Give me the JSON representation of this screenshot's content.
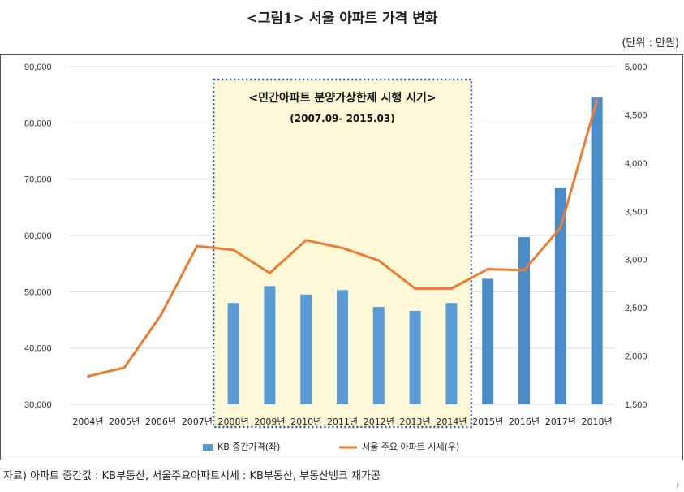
{
  "title": "<그림1> 서울 아파트 가격 변화",
  "unit_label": "(단위 : 만원)",
  "source_note": "자료) 아파트 중간값 : KB부동산, 서울주요아파트시세 : KB부동산, 부동산뱅크 재가공",
  "colors": {
    "bar": "#5b9bd5",
    "bar_dark": "#4a8cc9",
    "line": "#ed7d31",
    "highlight_fill": "#fdf8d8",
    "highlight_border": "#2e5c9e",
    "grid": "#d9d9d9"
  },
  "chart_data": {
    "type": "bar",
    "categories": [
      "2004년",
      "2005년",
      "2006년",
      "2007년",
      "2008년",
      "2009년",
      "2010년",
      "2011년",
      "2012년",
      "2013년",
      "2014년",
      "2015년",
      "2016년",
      "2017년",
      "2018년"
    ],
    "series": [
      {
        "name": "KB 중간가격(좌)",
        "type": "bar",
        "axis": "left",
        "values": [
          null,
          null,
          null,
          null,
          48000,
          51000,
          49500,
          50300,
          47300,
          46600,
          48000,
          52300,
          59700,
          68500,
          84500
        ]
      },
      {
        "name": "서울 주요 아파트 시세(우)",
        "type": "line",
        "axis": "right",
        "values": [
          1790,
          1880,
          2420,
          3140,
          3100,
          2860,
          3200,
          3120,
          2990,
          2700,
          2700,
          2900,
          2890,
          3330,
          4650
        ]
      }
    ],
    "y_left": {
      "min": 30000,
      "max": 90000,
      "ticks": [
        "30,000",
        "40,000",
        "50,000",
        "60,000",
        "70,000",
        "80,000",
        "90,000"
      ]
    },
    "y_right": {
      "min": 1500,
      "max": 5000,
      "ticks": [
        "1,500",
        "2,000",
        "2,500",
        "3,000",
        "3,500",
        "4,000",
        "4,500",
        "5,000"
      ]
    },
    "grid": true,
    "legend_position": "bottom",
    "annotation": {
      "title": "<민간아파트 분양가상한제 시행 시기>",
      "subtitle": "(2007.09- 2015.03)",
      "start_category": "2008년",
      "end_category": "2014년"
    }
  }
}
